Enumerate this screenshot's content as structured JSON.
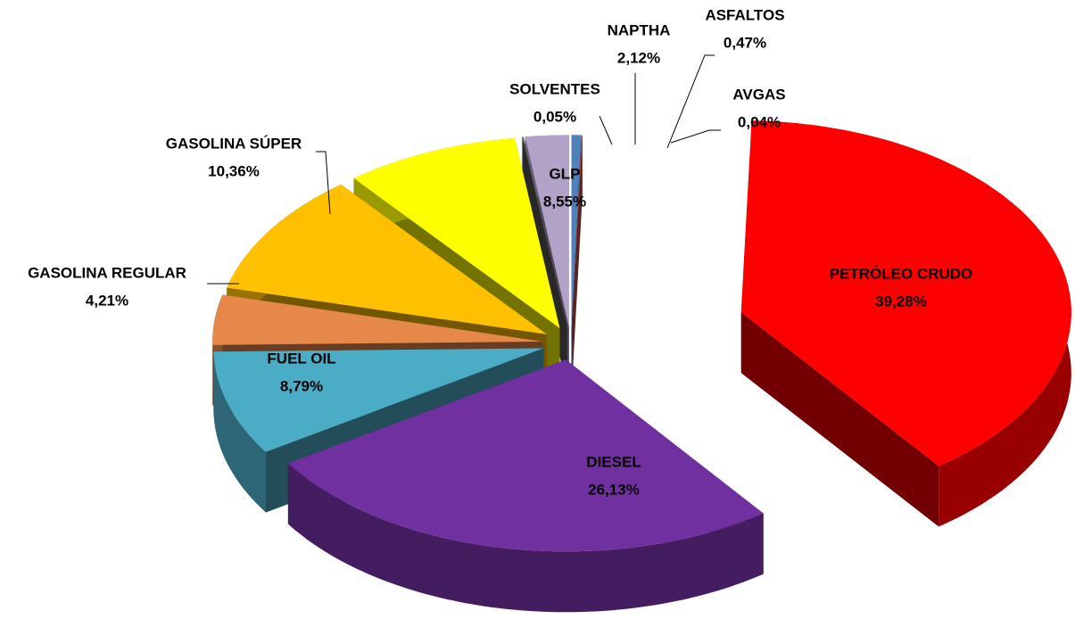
{
  "chart_data": {
    "type": "pie",
    "categories": [
      "ASFALTOS",
      "AVGAS",
      "PETRÓLEO CRUDO",
      "DIESEL",
      "FUEL OIL",
      "GASOLINA REGULAR",
      "GASOLINA SÚPER",
      "GLP",
      "SOLVENTES",
      "NAPTHA"
    ],
    "values": [
      0.47,
      0.04,
      39.28,
      26.13,
      8.79,
      4.21,
      10.36,
      8.55,
      0.05,
      2.12
    ],
    "value_labels": [
      "0,47%",
      "0,04%",
      "39,28%",
      "26,13%",
      "8,79%",
      "4,21%",
      "10,36%",
      "8,55%",
      "0,05%",
      "2,12%"
    ],
    "colors": [
      "#4f81bd",
      "#c0504d",
      "#ff0000",
      "#7030a0",
      "#4bacc6",
      "#e6884a",
      "#ffc000",
      "#ffff00",
      "#595959",
      "#b3a2c7"
    ]
  }
}
